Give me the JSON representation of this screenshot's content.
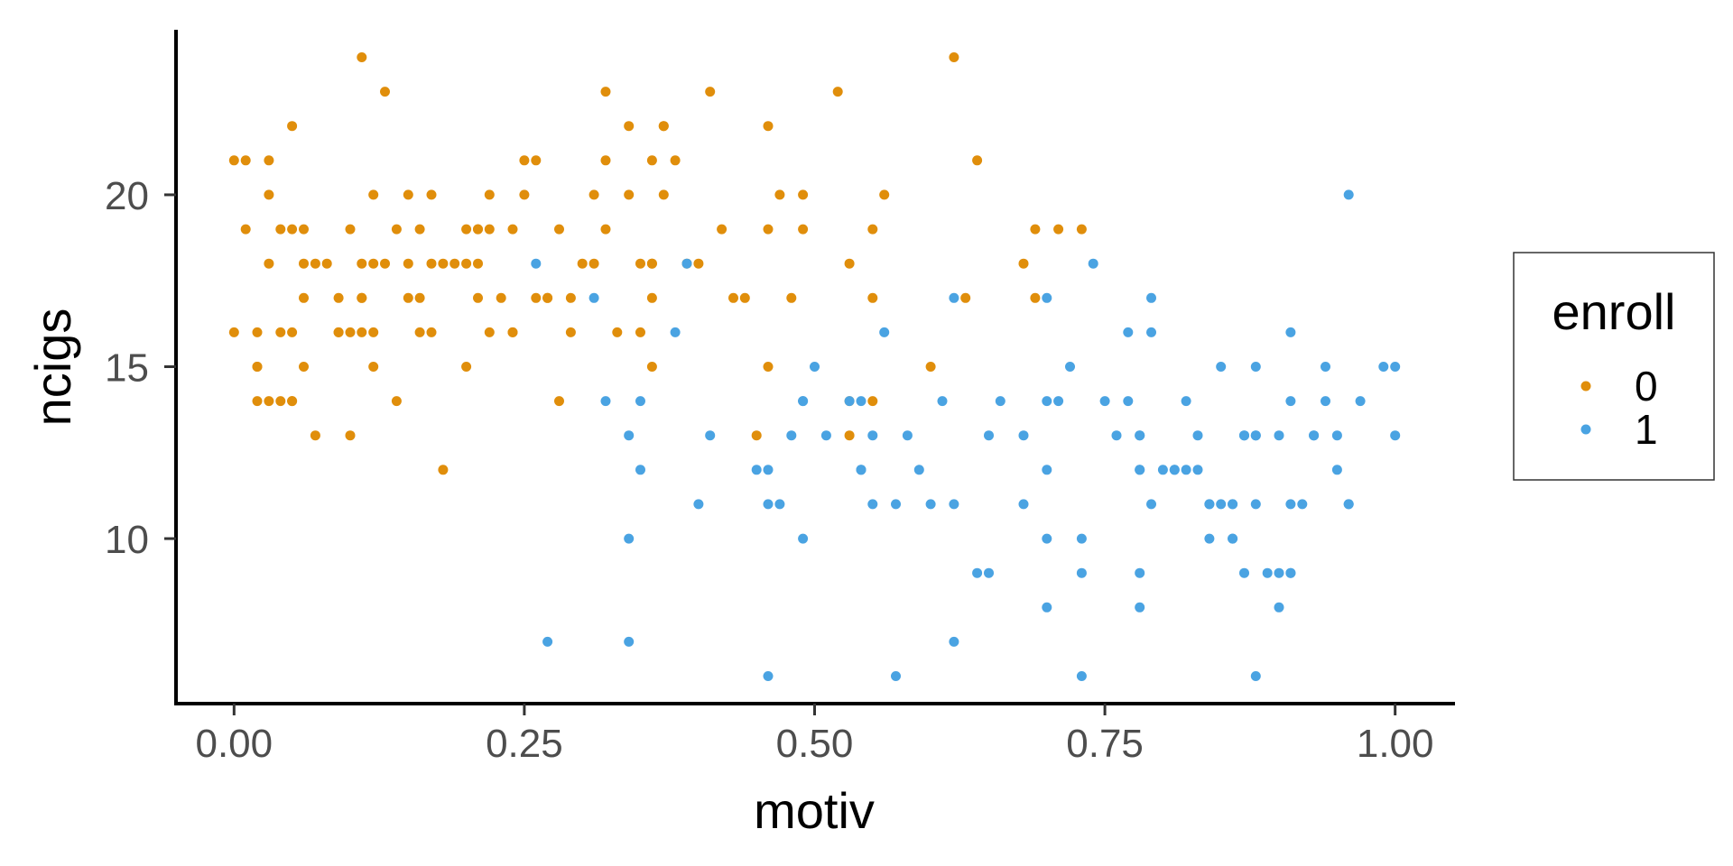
{
  "chart_data": {
    "type": "scatter",
    "title": "",
    "xlabel": "motiv",
    "ylabel": "ncigs",
    "xlim": [
      -0.05,
      1.05
    ],
    "ylim": [
      5.2,
      24.8
    ],
    "x_ticks": [
      0.0,
      0.25,
      0.5,
      0.75,
      1.0
    ],
    "x_tick_labels": [
      "0.00",
      "0.25",
      "0.50",
      "0.75",
      "1.00"
    ],
    "y_ticks": [
      10,
      15,
      20
    ],
    "y_tick_labels": [
      "10",
      "15",
      "20"
    ],
    "grid": false,
    "legend": {
      "title": "enroll",
      "placement": "right",
      "entries": [
        "0",
        "1"
      ]
    },
    "series": [
      {
        "name": "0",
        "color": "#E08E0B",
        "points": [
          [
            0.0,
            16
          ],
          [
            0.0,
            21
          ],
          [
            0.01,
            21
          ],
          [
            0.01,
            19
          ],
          [
            0.02,
            14
          ],
          [
            0.02,
            15
          ],
          [
            0.02,
            15
          ],
          [
            0.02,
            16
          ],
          [
            0.03,
            18
          ],
          [
            0.03,
            20
          ],
          [
            0.03,
            14
          ],
          [
            0.03,
            21
          ],
          [
            0.04,
            14
          ],
          [
            0.04,
            16
          ],
          [
            0.04,
            19
          ],
          [
            0.05,
            19
          ],
          [
            0.05,
            14
          ],
          [
            0.05,
            14
          ],
          [
            0.05,
            16
          ],
          [
            0.05,
            22
          ],
          [
            0.06,
            15
          ],
          [
            0.06,
            17
          ],
          [
            0.06,
            18
          ],
          [
            0.06,
            19
          ],
          [
            0.07,
            18
          ],
          [
            0.07,
            13
          ],
          [
            0.08,
            18
          ],
          [
            0.09,
            16
          ],
          [
            0.09,
            17
          ],
          [
            0.09,
            16
          ],
          [
            0.1,
            19
          ],
          [
            0.1,
            13
          ],
          [
            0.1,
            16
          ],
          [
            0.11,
            16
          ],
          [
            0.11,
            17
          ],
          [
            0.11,
            18
          ],
          [
            0.11,
            17
          ],
          [
            0.11,
            24
          ],
          [
            0.12,
            18
          ],
          [
            0.12,
            16
          ],
          [
            0.12,
            20
          ],
          [
            0.12,
            15
          ],
          [
            0.13,
            18
          ],
          [
            0.13,
            23
          ],
          [
            0.14,
            14
          ],
          [
            0.14,
            19
          ],
          [
            0.15,
            17
          ],
          [
            0.15,
            20
          ],
          [
            0.15,
            18
          ],
          [
            0.16,
            17
          ],
          [
            0.16,
            19
          ],
          [
            0.16,
            16
          ],
          [
            0.17,
            18
          ],
          [
            0.17,
            20
          ],
          [
            0.17,
            16
          ],
          [
            0.18,
            18
          ],
          [
            0.18,
            12
          ],
          [
            0.19,
            18
          ],
          [
            0.2,
            19
          ],
          [
            0.2,
            18
          ],
          [
            0.2,
            15
          ],
          [
            0.21,
            18
          ],
          [
            0.21,
            19
          ],
          [
            0.21,
            17
          ],
          [
            0.21,
            19
          ],
          [
            0.22,
            20
          ],
          [
            0.22,
            16
          ],
          [
            0.22,
            19
          ],
          [
            0.23,
            17
          ],
          [
            0.24,
            16
          ],
          [
            0.24,
            19
          ],
          [
            0.24,
            16
          ],
          [
            0.25,
            20
          ],
          [
            0.25,
            21
          ],
          [
            0.26,
            17
          ],
          [
            0.26,
            21
          ],
          [
            0.27,
            17
          ],
          [
            0.27,
            17
          ],
          [
            0.28,
            19
          ],
          [
            0.28,
            14
          ],
          [
            0.29,
            16
          ],
          [
            0.29,
            17
          ],
          [
            0.3,
            18
          ],
          [
            0.31,
            18
          ],
          [
            0.31,
            20
          ],
          [
            0.32,
            21
          ],
          [
            0.32,
            23
          ],
          [
            0.32,
            19
          ],
          [
            0.33,
            16
          ],
          [
            0.34,
            22
          ],
          [
            0.34,
            20
          ],
          [
            0.35,
            16
          ],
          [
            0.35,
            18
          ],
          [
            0.36,
            18
          ],
          [
            0.36,
            15
          ],
          [
            0.36,
            17
          ],
          [
            0.36,
            18
          ],
          [
            0.36,
            21
          ],
          [
            0.37,
            22
          ],
          [
            0.37,
            22
          ],
          [
            0.37,
            20
          ],
          [
            0.38,
            21
          ],
          [
            0.39,
            18
          ],
          [
            0.4,
            18
          ],
          [
            0.41,
            23
          ],
          [
            0.42,
            19
          ],
          [
            0.43,
            17
          ],
          [
            0.44,
            17
          ],
          [
            0.45,
            13
          ],
          [
            0.46,
            22
          ],
          [
            0.46,
            15
          ],
          [
            0.46,
            19
          ],
          [
            0.47,
            20
          ],
          [
            0.48,
            17
          ],
          [
            0.49,
            20
          ],
          [
            0.49,
            19
          ],
          [
            0.52,
            23
          ],
          [
            0.53,
            18
          ],
          [
            0.53,
            14
          ],
          [
            0.53,
            13
          ],
          [
            0.55,
            14
          ],
          [
            0.55,
            19
          ],
          [
            0.55,
            17
          ],
          [
            0.56,
            20
          ],
          [
            0.6,
            15
          ],
          [
            0.62,
            24
          ],
          [
            0.63,
            17
          ],
          [
            0.64,
            21
          ],
          [
            0.68,
            18
          ],
          [
            0.69,
            17
          ],
          [
            0.69,
            19
          ],
          [
            0.71,
            19
          ],
          [
            0.73,
            19
          ]
        ]
      },
      {
        "name": "1",
        "color": "#4AA3E2",
        "points": [
          [
            0.26,
            18
          ],
          [
            0.27,
            7
          ],
          [
            0.31,
            17
          ],
          [
            0.32,
            14
          ],
          [
            0.34,
            13
          ],
          [
            0.34,
            10
          ],
          [
            0.34,
            7
          ],
          [
            0.35,
            12
          ],
          [
            0.35,
            14
          ],
          [
            0.38,
            16
          ],
          [
            0.39,
            18
          ],
          [
            0.4,
            11
          ],
          [
            0.41,
            13
          ],
          [
            0.45,
            12
          ],
          [
            0.46,
            12
          ],
          [
            0.46,
            6
          ],
          [
            0.46,
            11
          ],
          [
            0.47,
            11
          ],
          [
            0.48,
            13
          ],
          [
            0.49,
            14
          ],
          [
            0.49,
            14
          ],
          [
            0.49,
            10
          ],
          [
            0.5,
            15
          ],
          [
            0.51,
            13
          ],
          [
            0.53,
            14
          ],
          [
            0.54,
            12
          ],
          [
            0.54,
            12
          ],
          [
            0.54,
            14
          ],
          [
            0.55,
            11
          ],
          [
            0.55,
            13
          ],
          [
            0.56,
            16
          ],
          [
            0.57,
            11
          ],
          [
            0.57,
            6
          ],
          [
            0.58,
            13
          ],
          [
            0.59,
            12
          ],
          [
            0.6,
            11
          ],
          [
            0.61,
            14
          ],
          [
            0.62,
            7
          ],
          [
            0.62,
            17
          ],
          [
            0.62,
            11
          ],
          [
            0.64,
            9
          ],
          [
            0.65,
            13
          ],
          [
            0.65,
            9
          ],
          [
            0.66,
            14
          ],
          [
            0.68,
            13
          ],
          [
            0.68,
            11
          ],
          [
            0.7,
            17
          ],
          [
            0.7,
            14
          ],
          [
            0.7,
            12
          ],
          [
            0.7,
            8
          ],
          [
            0.7,
            10
          ],
          [
            0.71,
            14
          ],
          [
            0.72,
            15
          ],
          [
            0.73,
            9
          ],
          [
            0.73,
            10
          ],
          [
            0.73,
            6
          ],
          [
            0.74,
            18
          ],
          [
            0.75,
            14
          ],
          [
            0.76,
            13
          ],
          [
            0.77,
            16
          ],
          [
            0.77,
            14
          ],
          [
            0.78,
            13
          ],
          [
            0.78,
            12
          ],
          [
            0.78,
            12
          ],
          [
            0.78,
            13
          ],
          [
            0.78,
            8
          ],
          [
            0.78,
            9
          ],
          [
            0.79,
            11
          ],
          [
            0.79,
            17
          ],
          [
            0.79,
            16
          ],
          [
            0.8,
            12
          ],
          [
            0.81,
            12
          ],
          [
            0.81,
            12
          ],
          [
            0.82,
            14
          ],
          [
            0.82,
            12
          ],
          [
            0.83,
            12
          ],
          [
            0.83,
            13
          ],
          [
            0.84,
            11
          ],
          [
            0.84,
            11
          ],
          [
            0.84,
            10
          ],
          [
            0.85,
            15
          ],
          [
            0.85,
            11
          ],
          [
            0.86,
            10
          ],
          [
            0.86,
            11
          ],
          [
            0.86,
            10
          ],
          [
            0.86,
            11
          ],
          [
            0.87,
            13
          ],
          [
            0.87,
            13
          ],
          [
            0.87,
            9
          ],
          [
            0.88,
            15
          ],
          [
            0.88,
            13
          ],
          [
            0.88,
            13
          ],
          [
            0.88,
            11
          ],
          [
            0.88,
            6
          ],
          [
            0.89,
            9
          ],
          [
            0.9,
            8
          ],
          [
            0.9,
            13
          ],
          [
            0.9,
            9
          ],
          [
            0.91,
            9
          ],
          [
            0.91,
            11
          ],
          [
            0.91,
            16
          ],
          [
            0.91,
            14
          ],
          [
            0.91,
            9
          ],
          [
            0.92,
            11
          ],
          [
            0.93,
            13
          ],
          [
            0.93,
            13
          ],
          [
            0.94,
            14
          ],
          [
            0.94,
            15
          ],
          [
            0.95,
            13
          ],
          [
            0.95,
            12
          ],
          [
            0.96,
            11
          ],
          [
            0.96,
            11
          ],
          [
            0.96,
            20
          ],
          [
            0.97,
            14
          ],
          [
            0.99,
            15
          ],
          [
            1.0,
            15
          ],
          [
            1.0,
            13
          ]
        ]
      }
    ]
  }
}
